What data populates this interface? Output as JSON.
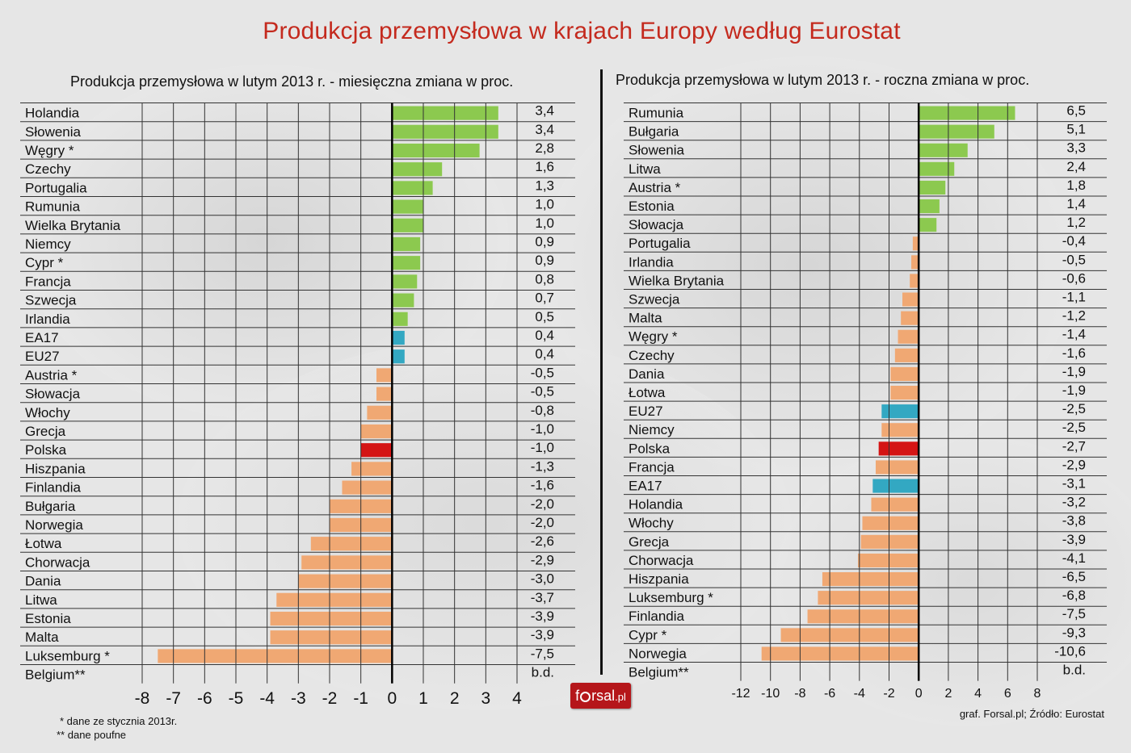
{
  "page_title": "Produkcja przemysłowa w krajach Europy według Eurostat",
  "footnotes": [
    "* dane ze stycznia 2013r.",
    "** dane poufne"
  ],
  "source": "graf. Forsal.pl; Źródło: Eurostat",
  "logo": {
    "name": "f",
    "rest": "rsal",
    "tld": ".pl"
  },
  "colors": {
    "positive": "#8cc94f",
    "negative": "#f0a873",
    "aggregate": "#33a8c2",
    "highlight": "#d41414",
    "grid": "#333333"
  },
  "chart_data": [
    {
      "type": "bar",
      "orientation": "horizontal",
      "title": "Produkcja przemysłowa w lutym 2013 r. - miesięczna zmiana w proc.",
      "xlim": [
        -8,
        4
      ],
      "ticks": [
        "-8",
        "-7",
        "-6",
        "-5",
        "-4",
        "-3",
        "-2",
        "-1",
        "0",
        "1",
        "2",
        "3",
        "4"
      ],
      "categories": [
        "Holandia",
        "Słowenia",
        "Węgry *",
        "Czechy",
        "Portugalia",
        "Rumunia",
        "Wielka Brytania",
        "Niemcy",
        "Cypr *",
        "Francja",
        "Szwecja",
        "Irlandia",
        "EA17",
        "EU27",
        "Austria *",
        "Słowacja",
        "Włochy",
        "Grecja",
        "Polska",
        "Hiszpania",
        "Finlandia",
        "Bułgaria",
        "Norwegia",
        "Łotwa",
        "Chorwacja",
        "Dania",
        "Litwa",
        "Estonia",
        "Malta",
        "Luksemburg *",
        "Belgium**"
      ],
      "values": [
        3.4,
        3.4,
        2.8,
        1.6,
        1.3,
        1.0,
        1.0,
        0.9,
        0.9,
        0.8,
        0.7,
        0.5,
        0.4,
        0.4,
        -0.5,
        -0.5,
        -0.8,
        -1.0,
        -1.0,
        -1.3,
        -1.6,
        -2.0,
        -2.0,
        -2.6,
        -2.9,
        -3.0,
        -3.7,
        -3.9,
        -3.9,
        -7.5,
        null
      ],
      "value_labels": [
        "3,4",
        "3,4",
        "2,8",
        "1,6",
        "1,3",
        "1,0",
        "1,0",
        "0,9",
        "0,9",
        "0,8",
        "0,7",
        "0,5",
        "0,4",
        "0,4",
        "-0,5",
        "-0,5",
        "-0,8",
        "-1,0",
        "-1,0",
        "-1,3",
        "-1,6",
        "-2,0",
        "-2,0",
        "-2,6",
        "-2,9",
        "-3,0",
        "-3,7",
        "-3,9",
        "-3,9",
        "-7,5",
        "b.d."
      ],
      "bar_kinds": [
        "positive",
        "positive",
        "positive",
        "positive",
        "positive",
        "positive",
        "positive",
        "positive",
        "positive",
        "positive",
        "positive",
        "positive",
        "aggregate",
        "aggregate",
        "negative",
        "negative",
        "negative",
        "negative",
        "highlight",
        "negative",
        "negative",
        "negative",
        "negative",
        "negative",
        "negative",
        "negative",
        "negative",
        "negative",
        "negative",
        "negative",
        "none"
      ]
    },
    {
      "type": "bar",
      "orientation": "horizontal",
      "title": "Produkcja przemysłowa w lutym 2013 r. - roczna zmiana w proc.",
      "xlim": [
        -12,
        8
      ],
      "ticks": [
        "-12",
        "-10",
        "-8",
        "-6",
        "-4",
        "-2",
        "0",
        "2",
        "4",
        "6",
        "8"
      ],
      "categories": [
        "Rumunia",
        "Bułgaria",
        "Słowenia",
        "Litwa",
        "Austria *",
        "Estonia",
        "Słowacja",
        "Portugalia",
        "Irlandia",
        "Wielka Brytania",
        "Szwecja",
        "Malta",
        "Węgry *",
        "Czechy",
        "Dania",
        "Łotwa",
        "EU27",
        "Niemcy",
        "Polska",
        "Francja",
        "EA17",
        "Holandia",
        "Włochy",
        "Grecja",
        "Chorwacja",
        "Hiszpania",
        "Luksemburg *",
        "Finlandia",
        "Cypr *",
        "Norwegia",
        "Belgium**"
      ],
      "values": [
        6.5,
        5.1,
        3.3,
        2.4,
        1.8,
        1.4,
        1.2,
        -0.4,
        -0.5,
        -0.6,
        -1.1,
        -1.2,
        -1.4,
        -1.6,
        -1.9,
        -1.9,
        -2.5,
        -2.5,
        -2.7,
        -2.9,
        -3.1,
        -3.2,
        -3.8,
        -3.9,
        -4.1,
        -6.5,
        -6.8,
        -7.5,
        -9.3,
        -10.6,
        null
      ],
      "value_labels": [
        "6,5",
        "5,1",
        "3,3",
        "2,4",
        "1,8",
        "1,4",
        "1,2",
        "-0,4",
        "-0,5",
        "-0,6",
        "-1,1",
        "-1,2",
        "-1,4",
        "-1,6",
        "-1,9",
        "-1,9",
        "-2,5",
        "-2,5",
        "-2,7",
        "-2,9",
        "-3,1",
        "-3,2",
        "-3,8",
        "-3,9",
        "-4,1",
        "-6,5",
        "-6,8",
        "-7,5",
        "-9,3",
        "-10,6",
        "b.d."
      ],
      "bar_kinds": [
        "positive",
        "positive",
        "positive",
        "positive",
        "positive",
        "positive",
        "positive",
        "negative",
        "negative",
        "negative",
        "negative",
        "negative",
        "negative",
        "negative",
        "negative",
        "negative",
        "aggregate",
        "negative",
        "highlight",
        "negative",
        "aggregate",
        "negative",
        "negative",
        "negative",
        "negative",
        "negative",
        "negative",
        "negative",
        "negative",
        "negative",
        "none"
      ]
    }
  ]
}
